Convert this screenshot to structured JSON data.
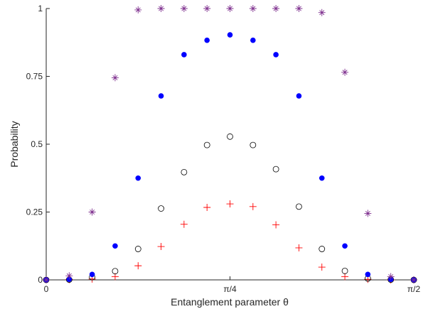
{
  "chart_data": {
    "type": "scatter",
    "title": "",
    "xlabel": "Entanglement parameter θ",
    "ylabel": "Probability",
    "xlim": [
      0,
      1.5708
    ],
    "ylim": [
      0,
      1
    ],
    "grid": false,
    "x_ticks": [
      {
        "value": 0,
        "label": "0"
      },
      {
        "value": 0.7854,
        "label": "π/4"
      },
      {
        "value": 1.5708,
        "label": "π/2"
      }
    ],
    "y_ticks": [
      {
        "value": 0,
        "label": "0"
      },
      {
        "value": 0.25,
        "label": "0.25"
      },
      {
        "value": 0.5,
        "label": "0.5"
      },
      {
        "value": 0.75,
        "label": "0.75"
      },
      {
        "value": 1,
        "label": "1"
      }
    ],
    "x": [
      0,
      0.0982,
      0.1963,
      0.2945,
      0.3927,
      0.4909,
      0.589,
      0.6872,
      0.7854,
      0.8836,
      0.9817,
      1.0799,
      1.1781,
      1.2763,
      1.3744,
      1.4726,
      1.5708
    ],
    "series": [
      {
        "marker": "asterisk",
        "color": "#7E2F8E",
        "values": [
          0,
          0.015,
          0.25,
          0.745,
          0.995,
          1.0,
          1.0,
          1.0,
          1.0,
          1.0,
          1.0,
          1.0,
          0.985,
          0.765,
          0.245,
          0.012,
          0
        ]
      },
      {
        "marker": "filled-circle",
        "color": "#0000FF",
        "values": [
          0,
          0.002,
          0.02,
          0.125,
          0.375,
          0.678,
          0.83,
          0.883,
          0.903,
          0.883,
          0.83,
          0.678,
          0.375,
          0.125,
          0.02,
          0.002,
          0
        ]
      },
      {
        "marker": "open-circle",
        "color": "#000000",
        "values": [
          0,
          0.001,
          0.01,
          0.032,
          0.114,
          0.263,
          0.397,
          0.497,
          0.528,
          0.497,
          0.408,
          0.27,
          0.114,
          0.033,
          0.005,
          0.001,
          0
        ]
      },
      {
        "marker": "plus",
        "color": "#FF0000",
        "values": [
          0,
          0.001,
          0.003,
          0.012,
          0.052,
          0.123,
          0.205,
          0.267,
          0.28,
          0.27,
          0.203,
          0.118,
          0.047,
          0.012,
          0.002,
          0.0,
          0
        ]
      }
    ]
  }
}
